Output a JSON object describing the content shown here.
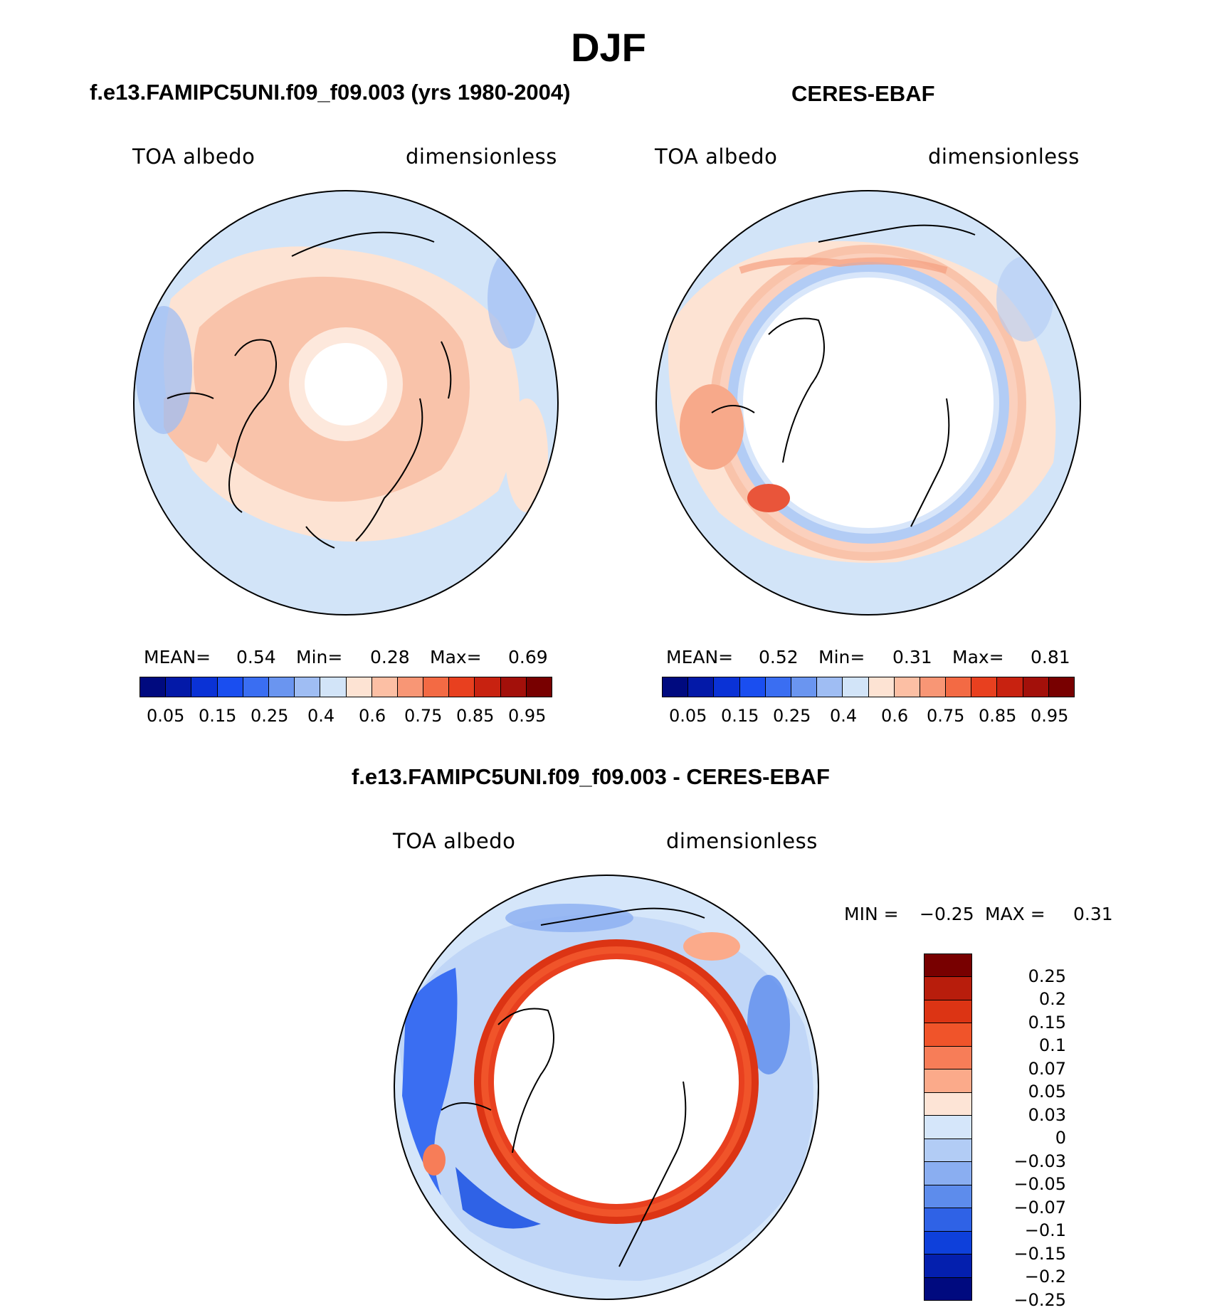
{
  "figure": {
    "title": "DJF"
  },
  "panels": [
    {
      "id": "model",
      "title": "f.e13.FAMIPC5UNI.f09_f09.003 (yrs 1980-2004)",
      "left_label": "TOA albedo",
      "right_label": "dimensionless",
      "stats": {
        "mean_label": "MEAN=",
        "mean": "0.54",
        "min_label": "Min=",
        "min": "0.28",
        "max_label": "Max=",
        "max": "0.69"
      }
    },
    {
      "id": "obs",
      "title": "CERES-EBAF",
      "left_label": "TOA albedo",
      "right_label": "dimensionless",
      "stats": {
        "mean_label": "MEAN=",
        "mean": "0.52",
        "min_label": "Min=",
        "min": "0.31",
        "max_label": "Max=",
        "max": "0.81"
      }
    },
    {
      "id": "diff",
      "title": "f.e13.FAMIPC5UNI.f09_f09.003 - CERES-EBAF",
      "left_label": "TOA albedo",
      "right_label": "dimensionless",
      "minmax": {
        "min_label": "MIN =",
        "min": "−0.25",
        "max_label": "MAX =",
        "max": "0.31"
      }
    }
  ],
  "colorbars": {
    "main": {
      "colors": [
        "#000a7f",
        "#0319a8",
        "#0a32d6",
        "#1a4ef0",
        "#3a6ef2",
        "#6a95f0",
        "#9fbdf3",
        "#d2e4f8",
        "#fde3d3",
        "#fcbfa4",
        "#f89675",
        "#f36a44",
        "#e8401f",
        "#c82210",
        "#a3100a",
        "#780000"
      ],
      "labels": [
        "0.05",
        "0.15",
        "0.25",
        "0.4",
        "0.6",
        "0.75",
        "0.85",
        "0.95"
      ]
    },
    "diff": {
      "colors": [
        "#780000",
        "#b81d0c",
        "#dc3414",
        "#f0542a",
        "#f77d58",
        "#fbaa8a",
        "#fde4d6",
        "#d5e6fa",
        "#b2ccf5",
        "#8aaef1",
        "#5d8cec",
        "#2f62e6",
        "#0e40db",
        "#041fae",
        "#000a7f"
      ],
      "labels": [
        "0.25",
        "0.2",
        "0.15",
        "0.1",
        "0.07",
        "0.05",
        "0.03",
        "0",
        "−0.03",
        "−0.05",
        "−0.07",
        "−0.1",
        "−0.15",
        "−0.2",
        "−0.25"
      ]
    }
  }
}
